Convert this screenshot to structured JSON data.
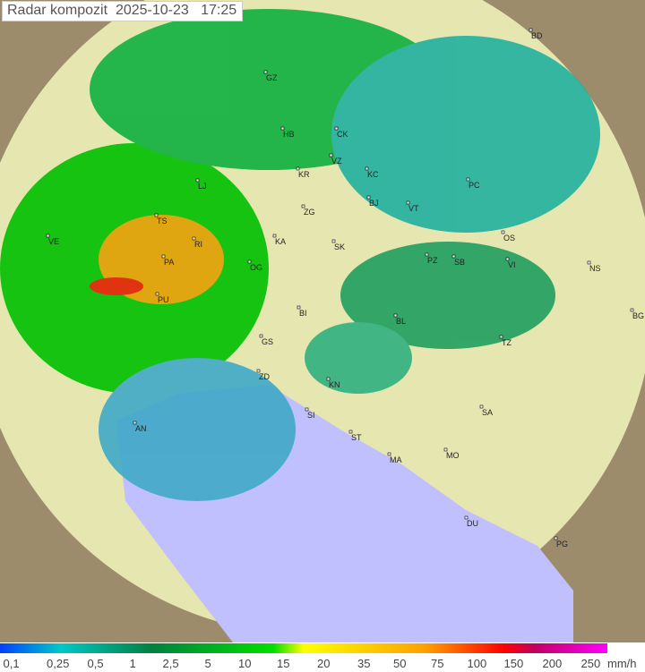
{
  "title": "Radar kompozit  2025-10-23   17:25",
  "legend": {
    "unit": "mm/h",
    "ticks": [
      "0,1",
      "0,25",
      "0,5",
      "1",
      "2,5",
      "5",
      "10",
      "15",
      "20",
      "35",
      "50",
      "75",
      "100",
      "150",
      "200",
      "250"
    ],
    "colors": [
      "#0040ff",
      "#00c8c8",
      "#008040",
      "#00e000",
      "#ffff00",
      "#ffa000",
      "#ff0000",
      "#ff00ff"
    ]
  },
  "map": {
    "land_color": "#e6e6b0",
    "sea_color": "#c0c0ff",
    "outside_color": "#a09070",
    "cities": [
      "BD",
      "GZ",
      "HB",
      "CK",
      "VZ",
      "KR",
      "KC",
      "LJ",
      "BJ",
      "VT",
      "PC",
      "ZG",
      "TS",
      "VE",
      "RI",
      "KA",
      "SK",
      "OS",
      "PZ",
      "SB",
      "VI",
      "NS",
      "PA",
      "OG",
      "PU",
      "BI",
      "BL",
      "BG",
      "TZ",
      "GS",
      "ZD",
      "KN",
      "SI",
      "AN",
      "SA",
      "ST",
      "MA",
      "MO",
      "DU",
      "PG"
    ]
  }
}
